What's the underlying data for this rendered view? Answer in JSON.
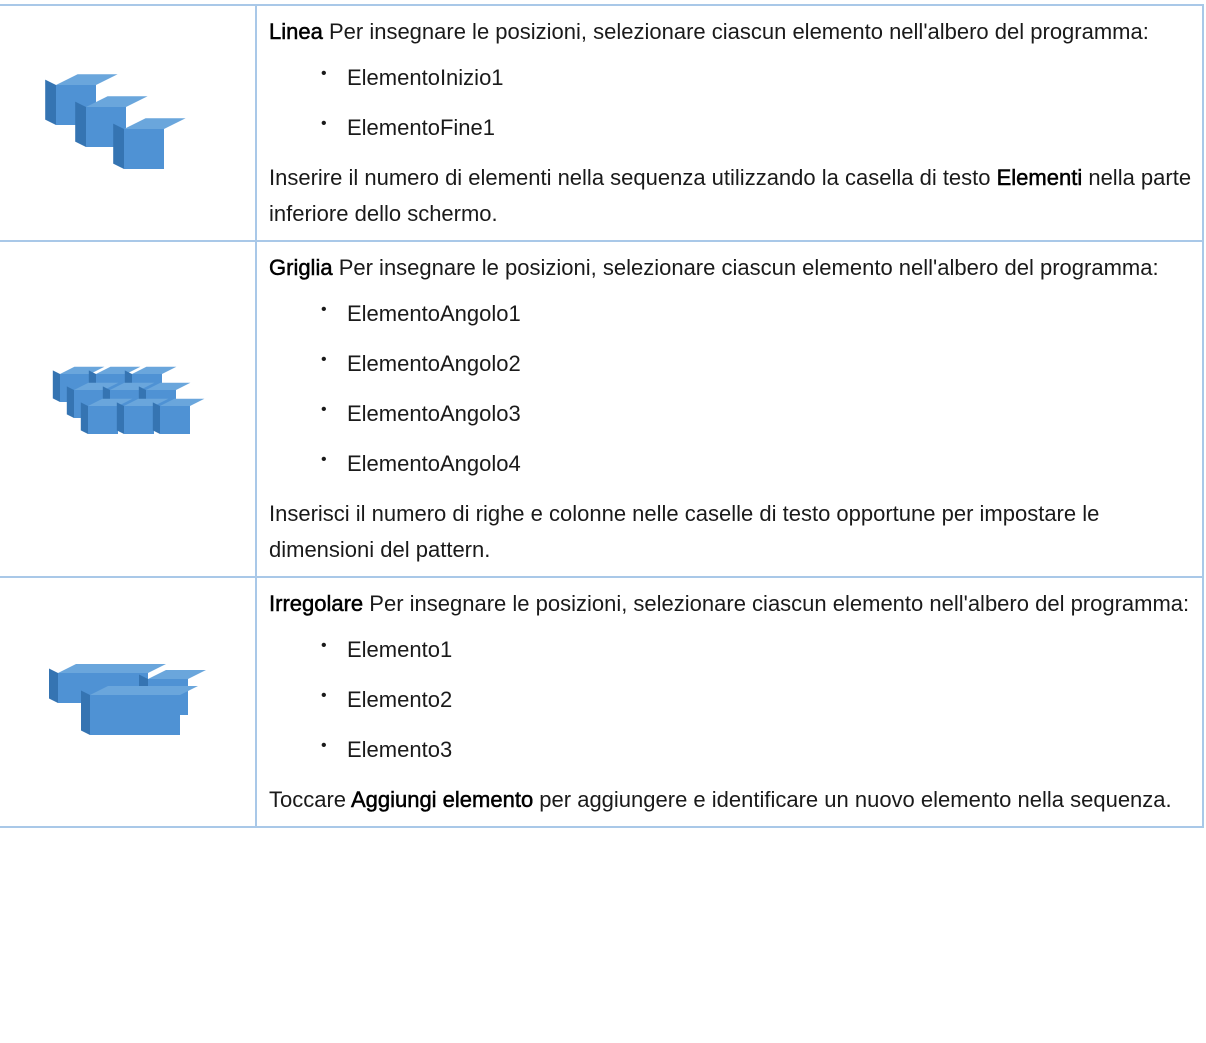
{
  "table": {
    "rows": [
      {
        "title": "Linea",
        "intro": "Per insegnare le posizioni, selezionare ciascun elemento nell'albero del programma:",
        "items": [
          "ElementoInizio1",
          "ElementoFine1"
        ],
        "note": [
          {
            "text": "Inserire il numero di elementi nella sequenza utilizzando la casella di testo ",
            "bold": false
          },
          {
            "text": "Elementi",
            "bold": true
          },
          {
            "text": " nella parte inferiore dello schermo.",
            "bold": false
          }
        ]
      },
      {
        "title": "Griglia",
        "intro": "Per insegnare le posizioni, selezionare ciascun elemento nell'albero del programma:",
        "items": [
          "ElementoAngolo1",
          "ElementoAngolo2",
          "ElementoAngolo3",
          "ElementoAngolo4"
        ],
        "note": [
          {
            "text": "Inserisci il numero di righe e colonne nelle caselle di testo opportune per impostare le dimensioni del pattern.",
            "bold": false
          }
        ]
      },
      {
        "title": "Irregolare",
        "intro": "Per insegnare le posizioni, selezionare ciascun elemento nell'albero del programma:",
        "items": [
          "Elemento1",
          "Elemento2",
          "Elemento3"
        ],
        "note": [
          {
            "text": "Toccare ",
            "bold": false
          },
          {
            "text": "Aggiungi elemento",
            "bold": true
          },
          {
            "text": " per aggiungere e identificare un nuovo elemento nella sequenza.",
            "bold": false
          }
        ]
      }
    ]
  }
}
